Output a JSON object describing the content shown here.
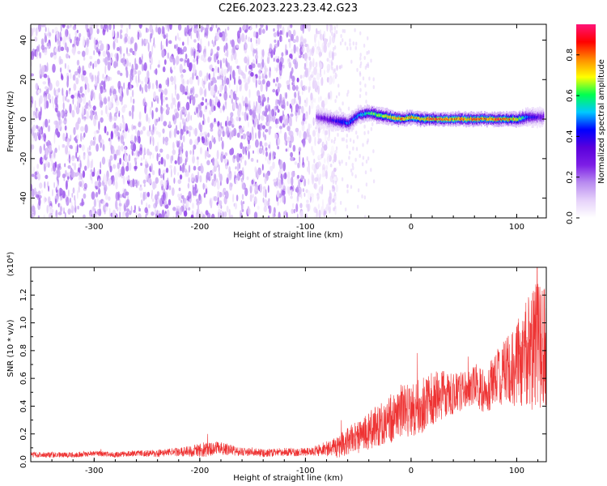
{
  "title": "C2E6.2023.223.23.42.G23",
  "chart_data": [
    {
      "type": "heatmap",
      "xlabel": "Height of straight line (km)",
      "ylabel": "Frequency (Hz)",
      "xlim": [
        -360,
        128
      ],
      "ylim": [
        -50,
        48
      ],
      "xticks": [
        -300,
        -200,
        -100,
        0,
        100
      ],
      "yticks": [
        -40,
        -20,
        0,
        20,
        40
      ],
      "colorbar": {
        "label": "Normalized spectral amplitude",
        "range": [
          0.0,
          0.95
        ],
        "ticks": [
          "0.0",
          "0.2",
          "0.4",
          "0.6",
          "0.8"
        ],
        "colors": [
          "#ffffff",
          "#e6d2fa",
          "#b98cf0",
          "#7d1ee6",
          "#5a00dc",
          "#0000ff",
          "#00c8ff",
          "#00ff50",
          "#ffff00",
          "#ff8c00",
          "#ff0000",
          "#ff1478"
        ]
      },
      "noise_region": {
        "x_range": [
          -360,
          -100
        ],
        "typical_amplitude": 0.2
      },
      "trace": {
        "x": [
          -90,
          -80,
          -70,
          -60,
          -50,
          -40,
          -30,
          -20,
          -10,
          0,
          10,
          20,
          30,
          40,
          50,
          60,
          70,
          80,
          90,
          100,
          110,
          125
        ],
        "y": [
          1,
          0,
          -1,
          -2,
          2,
          3,
          2,
          1,
          0,
          1,
          0,
          0,
          0,
          0,
          0,
          0,
          0,
          0,
          0,
          0,
          1,
          1
        ],
        "peak_amplitude": [
          0.3,
          0.35,
          0.45,
          0.5,
          0.55,
          0.65,
          0.7,
          0.8,
          0.85,
          0.85,
          0.8,
          0.9,
          0.9,
          0.85,
          0.85,
          0.9,
          0.85,
          0.9,
          0.85,
          0.8,
          0.5,
          0.3
        ]
      }
    },
    {
      "type": "line",
      "xlabel": "Height of straight line (km)",
      "ylabel": "SNR (10 * v/v)",
      "yscale_label": "(x10⁴)",
      "xlim": [
        -360,
        128
      ],
      "ylim": [
        0,
        1.4
      ],
      "xticks": [
        -300,
        -200,
        -100,
        0,
        100
      ],
      "yticks": [
        0.0,
        0.2,
        0.4,
        0.6,
        0.8,
        1.0,
        1.2
      ],
      "ytick_labels": [
        "0.0",
        "0.2",
        "0.4",
        "0.6",
        "0.8",
        "1.0",
        "1.2"
      ],
      "color": "#ee3333",
      "series": [
        {
          "x": [
            -360,
            -340,
            -320,
            -300,
            -280,
            -260,
            -240,
            -220,
            -200,
            -190,
            -180,
            -170,
            -160,
            -150,
            -140,
            -120,
            -100,
            -90,
            -80,
            -70,
            -60,
            -50,
            -40,
            -30,
            -20,
            -10,
            0,
            10,
            20,
            30,
            40,
            50,
            60,
            70,
            80,
            90,
            100,
            110,
            120,
            125
          ],
          "y": [
            0.05,
            0.05,
            0.05,
            0.06,
            0.05,
            0.06,
            0.06,
            0.07,
            0.08,
            0.09,
            0.1,
            0.08,
            0.07,
            0.07,
            0.06,
            0.07,
            0.07,
            0.08,
            0.09,
            0.1,
            0.15,
            0.18,
            0.22,
            0.26,
            0.3,
            0.36,
            0.38,
            0.4,
            0.45,
            0.48,
            0.5,
            0.52,
            0.55,
            0.5,
            0.6,
            0.65,
            0.7,
            0.78,
            0.85,
            0.8
          ],
          "spread": [
            0.02,
            0.02,
            0.02,
            0.02,
            0.02,
            0.02,
            0.03,
            0.03,
            0.05,
            0.05,
            0.05,
            0.04,
            0.03,
            0.03,
            0.03,
            0.03,
            0.03,
            0.04,
            0.05,
            0.08,
            0.1,
            0.12,
            0.14,
            0.16,
            0.18,
            0.2,
            0.2,
            0.2,
            0.2,
            0.18,
            0.16,
            0.14,
            0.14,
            0.16,
            0.2,
            0.25,
            0.3,
            0.4,
            0.5,
            0.45
          ]
        }
      ]
    }
  ]
}
